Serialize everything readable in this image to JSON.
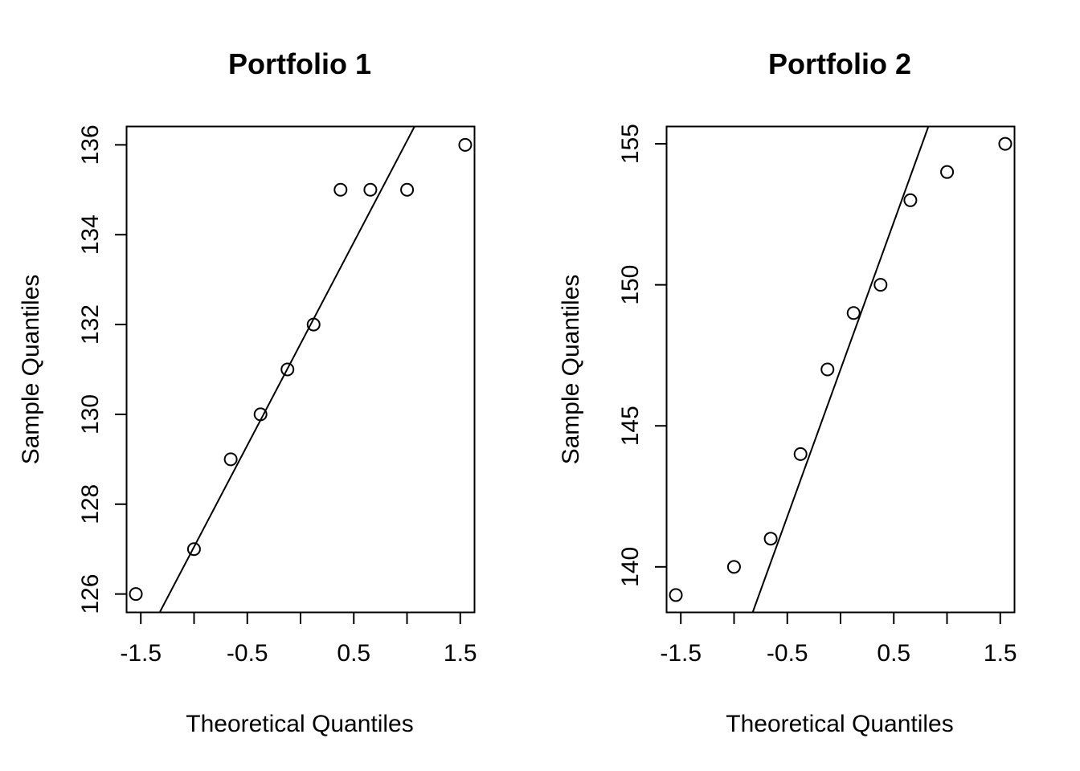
{
  "chart_data": [
    {
      "type": "scatter",
      "subtype": "qq-plot",
      "title": "Portfolio 1",
      "xlabel": "Theoretical Quantiles",
      "ylabel": "Sample Quantiles",
      "xlim": [
        -1.63,
        1.63
      ],
      "ylim": [
        125.6,
        136.4
      ],
      "xticks": [
        -1.5,
        -1.0,
        -0.5,
        0.0,
        0.5,
        1.0,
        1.5
      ],
      "xtick_labels": [
        "-1.5",
        "",
        "-0.5",
        "",
        "0.5",
        "",
        "1.5"
      ],
      "yticks": [
        126,
        128,
        130,
        132,
        134,
        136
      ],
      "ytick_labels": [
        "126",
        "128",
        "130",
        "132",
        "134",
        "136"
      ],
      "x": [
        -1.5466,
        -1.0005,
        -0.6557,
        -0.3758,
        -0.1226,
        0.1226,
        0.3758,
        0.6557,
        1.0005,
        1.5466
      ],
      "y": [
        126,
        127,
        129,
        130,
        131,
        132,
        135,
        135,
        135,
        136
      ],
      "reference_line": {
        "intercept": 131.57,
        "slope": 4.52
      },
      "grid": false,
      "legend": "none"
    },
    {
      "type": "scatter",
      "subtype": "qq-plot",
      "title": "Portfolio 2",
      "xlabel": "Theoretical Quantiles",
      "ylabel": "Sample Quantiles",
      "xlim": [
        -1.63,
        1.63
      ],
      "ylim": [
        138.4,
        155.6
      ],
      "xticks": [
        -1.5,
        -1.0,
        -0.5,
        0.0,
        0.5,
        1.0,
        1.5
      ],
      "xtick_labels": [
        "-1.5",
        "",
        "-0.5",
        "",
        "0.5",
        "",
        "1.5"
      ],
      "yticks": [
        140,
        145,
        150,
        155
      ],
      "ytick_labels": [
        "140",
        "145",
        "150",
        "155"
      ],
      "x": [
        -1.5466,
        -1.0005,
        -0.6557,
        -0.3758,
        -0.1226,
        0.1226,
        0.3758,
        0.6557,
        1.0005,
        1.5466
      ],
      "y": [
        139,
        140,
        141,
        144,
        147,
        149,
        150,
        153,
        154,
        155
      ],
      "reference_line": {
        "intercept": 147.0,
        "slope": 10.44
      },
      "grid": false,
      "legend": "none"
    }
  ],
  "colors": {
    "points": "#000000",
    "line": "#000000",
    "background": "#ffffff"
  }
}
